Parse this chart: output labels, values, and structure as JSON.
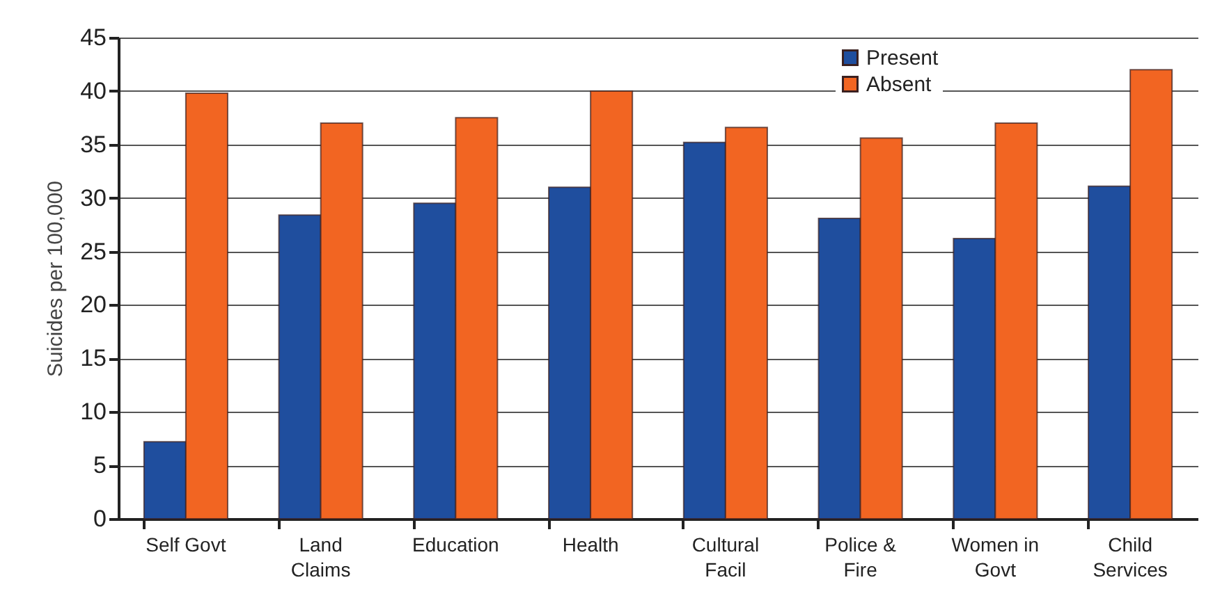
{
  "chart_data": {
    "type": "bar",
    "ylabel": "Suicides per 100,000",
    "categories": [
      "Self Govt",
      "Land Claims",
      "Education",
      "Health",
      "Cultural Facil",
      "Police & Fire",
      "Women in Govt",
      "Child Services"
    ],
    "series": [
      {
        "name": "Present",
        "color": "#1f4e9e",
        "values": [
          7.2,
          28.4,
          29.5,
          31.0,
          35.2,
          28.1,
          26.2,
          31.1
        ]
      },
      {
        "name": "Absent",
        "color": "#f26522",
        "values": [
          39.8,
          37.0,
          37.5,
          40.0,
          36.6,
          35.6,
          37.0,
          42.0
        ]
      }
    ],
    "ylim": [
      0,
      45
    ],
    "yticks": [
      0,
      5,
      10,
      15,
      20,
      25,
      30,
      35,
      40,
      45
    ],
    "grid": "y",
    "legend": "top"
  }
}
